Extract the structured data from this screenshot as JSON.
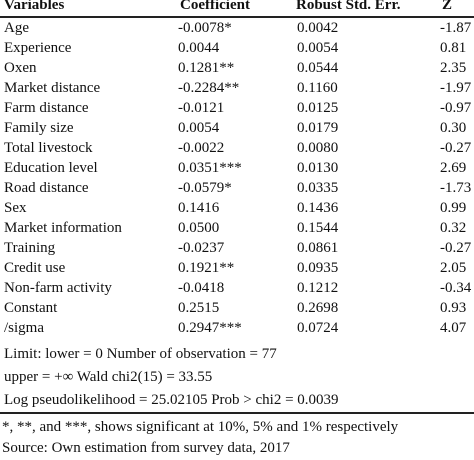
{
  "table": {
    "headers": [
      "Variables",
      "Coefficient",
      "Robust Std. Err.",
      "Z"
    ],
    "rows": [
      [
        "Age",
        "-0.0078*",
        "0.0042",
        "-1.87"
      ],
      [
        "Experience",
        "0.0044",
        "0.0054",
        "0.81"
      ],
      [
        "Oxen",
        "0.1281**",
        "0.0544",
        "2.35"
      ],
      [
        "Market distance",
        "-0.2284**",
        "0.1160",
        "-1.97"
      ],
      [
        "Farm distance",
        "-0.0121",
        "0.0125",
        "-0.97"
      ],
      [
        "Family size",
        "0.0054",
        "0.0179",
        "0.30"
      ],
      [
        "Total livestock",
        "-0.0022",
        "0.0080",
        "-0.27"
      ],
      [
        "Education level",
        "0.0351***",
        "0.0130",
        "2.69"
      ],
      [
        "Road distance",
        "-0.0579*",
        "0.0335",
        "-1.73"
      ],
      [
        "Sex",
        "0.1416",
        "0.1436",
        "0.99"
      ],
      [
        "Market information",
        "0.0500",
        "0.1544",
        "0.32"
      ],
      [
        "Training",
        "-0.0237",
        "0.0861",
        "-0.27"
      ],
      [
        "Credit use",
        "0.1921**",
        "0.0935",
        "2.05"
      ],
      [
        "Non-farm activity",
        "-0.0418",
        "0.1212",
        "-0.34"
      ],
      [
        "Constant",
        "0.2515",
        "0.2698",
        "0.93"
      ],
      [
        "/sigma",
        "0.2947***",
        "0.0724",
        "4.07"
      ]
    ]
  },
  "stats": [
    "Limit: lower = 0 Number of observation = 77",
    "upper = +∞ Wald chi2(15) = 33.55",
    "Log pseudolikelihood = 25.02105 Prob > chi2 = 0.0039"
  ],
  "footnotes": [
    "*, **, and ***, shows significant at 10%, 5% and 1% respectively",
    "Source: Own estimation from survey data, 2017"
  ]
}
